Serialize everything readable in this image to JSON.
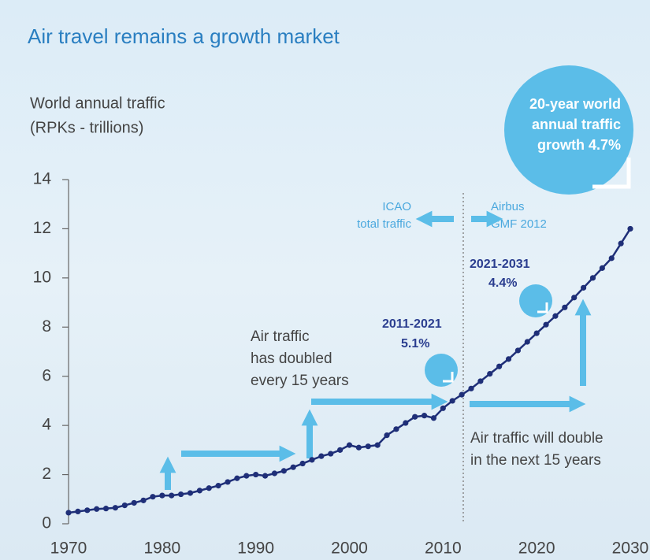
{
  "chart_data": {
    "type": "line",
    "title": "Air travel remains a growth market",
    "ylabel": [
      "World annual traffic",
      "(RPKs - trillions)"
    ],
    "x": [
      1970,
      1971,
      1972,
      1973,
      1974,
      1975,
      1976,
      1977,
      1978,
      1979,
      1980,
      1981,
      1982,
      1983,
      1984,
      1985,
      1986,
      1987,
      1988,
      1989,
      1990,
      1991,
      1992,
      1993,
      1994,
      1995,
      1996,
      1997,
      1998,
      1999,
      2000,
      2001,
      2002,
      2003,
      2004,
      2005,
      2006,
      2007,
      2008,
      2009,
      2010,
      2011,
      2012,
      2013,
      2014,
      2015,
      2016,
      2017,
      2018,
      2019,
      2020,
      2021,
      2022,
      2023,
      2024,
      2025,
      2026,
      2027,
      2028,
      2029,
      2030
    ],
    "series": [
      {
        "name": "World annual traffic",
        "color": "#1f2f78",
        "values": [
          0.45,
          0.5,
          0.55,
          0.6,
          0.62,
          0.65,
          0.75,
          0.85,
          0.95,
          1.1,
          1.15,
          1.15,
          1.2,
          1.25,
          1.35,
          1.45,
          1.55,
          1.7,
          1.85,
          1.95,
          2.0,
          1.95,
          2.05,
          2.15,
          2.3,
          2.45,
          2.6,
          2.75,
          2.85,
          3.0,
          3.2,
          3.1,
          3.15,
          3.2,
          3.6,
          3.85,
          4.1,
          4.35,
          4.4,
          4.3,
          4.7,
          5.0,
          5.25,
          5.5,
          5.8,
          6.1,
          6.4,
          6.7,
          7.05,
          7.4,
          7.75,
          8.1,
          8.45,
          8.8,
          9.2,
          9.6,
          10.0,
          10.4,
          10.8,
          11.4,
          12.0
        ]
      }
    ],
    "xlim": [
      1970,
      2030
    ],
    "xticks": [
      1970,
      1980,
      1990,
      2000,
      2010,
      2020,
      2030
    ],
    "ylim": [
      0,
      14
    ],
    "yticks": [
      0,
      2,
      4,
      6,
      8,
      10,
      12,
      14
    ],
    "annotations": {
      "bubble": [
        "20-year world",
        "annual traffic",
        "growth 4.7%"
      ],
      "icao": [
        "ICAO",
        "total traffic"
      ],
      "airbus": [
        "Airbus",
        "GMF 2012"
      ],
      "period_2021": [
        "2021-2031",
        "4.4%"
      ],
      "period_2011": [
        "2011-2021",
        "5.1%"
      ],
      "doubled": [
        "Air traffic",
        "has doubled",
        "every 15 years"
      ],
      "will_double": [
        "Air traffic will double",
        "in the next 15 years"
      ]
    }
  }
}
